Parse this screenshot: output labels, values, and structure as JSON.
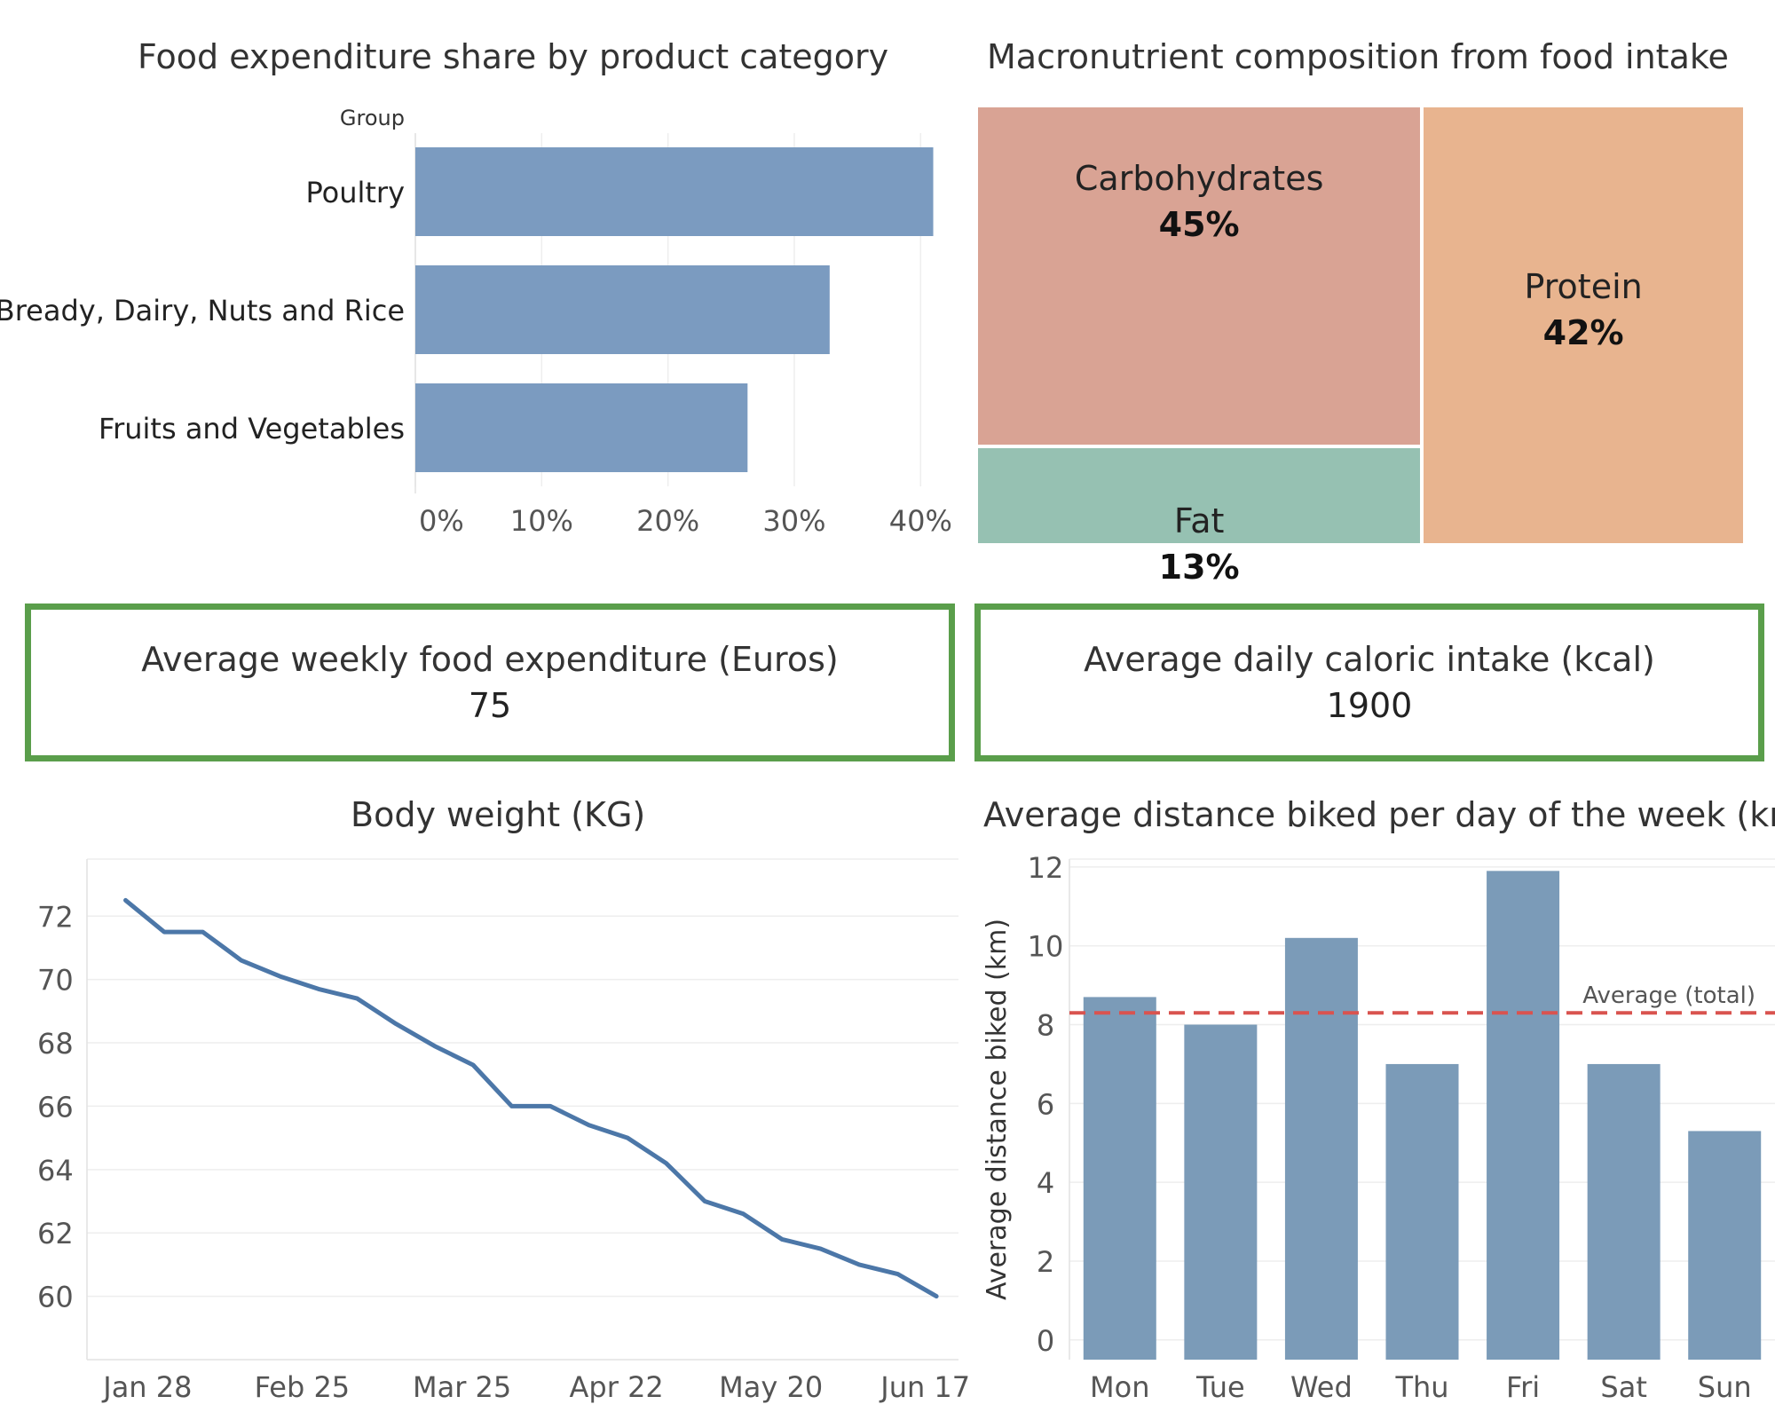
{
  "chart_data": [
    {
      "type": "bar",
      "orientation": "horizontal",
      "title": "Food expenditure share by product category",
      "axis_header": "Group",
      "categories": [
        "Poultry",
        "Bready, Dairy, Nuts and Rice",
        "Fruits and Vegetables"
      ],
      "values": [
        41,
        32.8,
        26.3
      ],
      "xticks": [
        "0%",
        "10%",
        "20%",
        "30%",
        "40%"
      ],
      "xlim": [
        0,
        43
      ],
      "grid": true,
      "bar_color": "#7b9bc0"
    },
    {
      "type": "treemap",
      "title": "Macronutrient composition from food intake",
      "items": [
        {
          "name": "Carbohydrates",
          "value": 45,
          "label": "45%",
          "color": "#d9a394"
        },
        {
          "name": "Fat",
          "value": 13,
          "label": "13%",
          "color": "#96c1b2"
        },
        {
          "name": "Protein",
          "value": 42,
          "label": "42%",
          "color": "#e8b48f"
        }
      ]
    },
    {
      "type": "line",
      "title": "Body weight (KG)",
      "x": [
        "2024-01-24",
        "2024-01-31",
        "2024-02-07",
        "2024-02-14",
        "2024-02-21",
        "2024-02-28",
        "2024-03-06",
        "2024-03-13",
        "2024-03-20",
        "2024-03-27",
        "2024-04-03",
        "2024-04-10",
        "2024-04-17",
        "2024-04-24",
        "2024-05-01",
        "2024-05-08",
        "2024-05-15",
        "2024-05-22",
        "2024-05-29",
        "2024-06-05",
        "2024-06-12",
        "2024-06-19"
      ],
      "y": [
        72.5,
        71.5,
        71.5,
        70.6,
        70.1,
        69.7,
        69.4,
        68.6,
        67.9,
        67.3,
        66.0,
        66.0,
        65.4,
        65.0,
        64.2,
        63.0,
        62.6,
        61.8,
        61.5,
        61.0,
        60.7,
        60.0
      ],
      "xticks": [
        "Jan 28",
        "Feb 25",
        "Mar 25",
        "Apr 22",
        "May 20",
        "Jun 17"
      ],
      "yticks": [
        60,
        62,
        64,
        66,
        68,
        70,
        72
      ],
      "ylim": [
        58,
        73.8
      ],
      "grid": true,
      "line_color": "#4c77a8"
    },
    {
      "type": "bar",
      "title": "Average distance biked per day of the week (km)",
      "ylabel": "Average distance biked (km)",
      "categories": [
        "Mon",
        "Tue",
        "Wed",
        "Thu",
        "Fri",
        "Sat",
        "Sun"
      ],
      "values": [
        8.7,
        8.0,
        10.2,
        7.0,
        11.9,
        7.0,
        5.3
      ],
      "yticks": [
        0,
        2,
        4,
        6,
        8,
        10,
        12
      ],
      "ylim": [
        -0.5,
        12.2
      ],
      "reference_line": {
        "label": "Average (total)",
        "value": 8.3,
        "color": "#d9534f",
        "style": "dashed"
      },
      "grid": true,
      "bar_color": "#7b9bb8"
    }
  ],
  "kpis": [
    {
      "label": "Average weekly food expenditure (Euros)",
      "value": "75"
    },
    {
      "label": "Average daily caloric intake (kcal)",
      "value": "1900"
    }
  ],
  "colors": {
    "kpi_border": "#5a9e4b",
    "grid": "#eeeeee"
  }
}
